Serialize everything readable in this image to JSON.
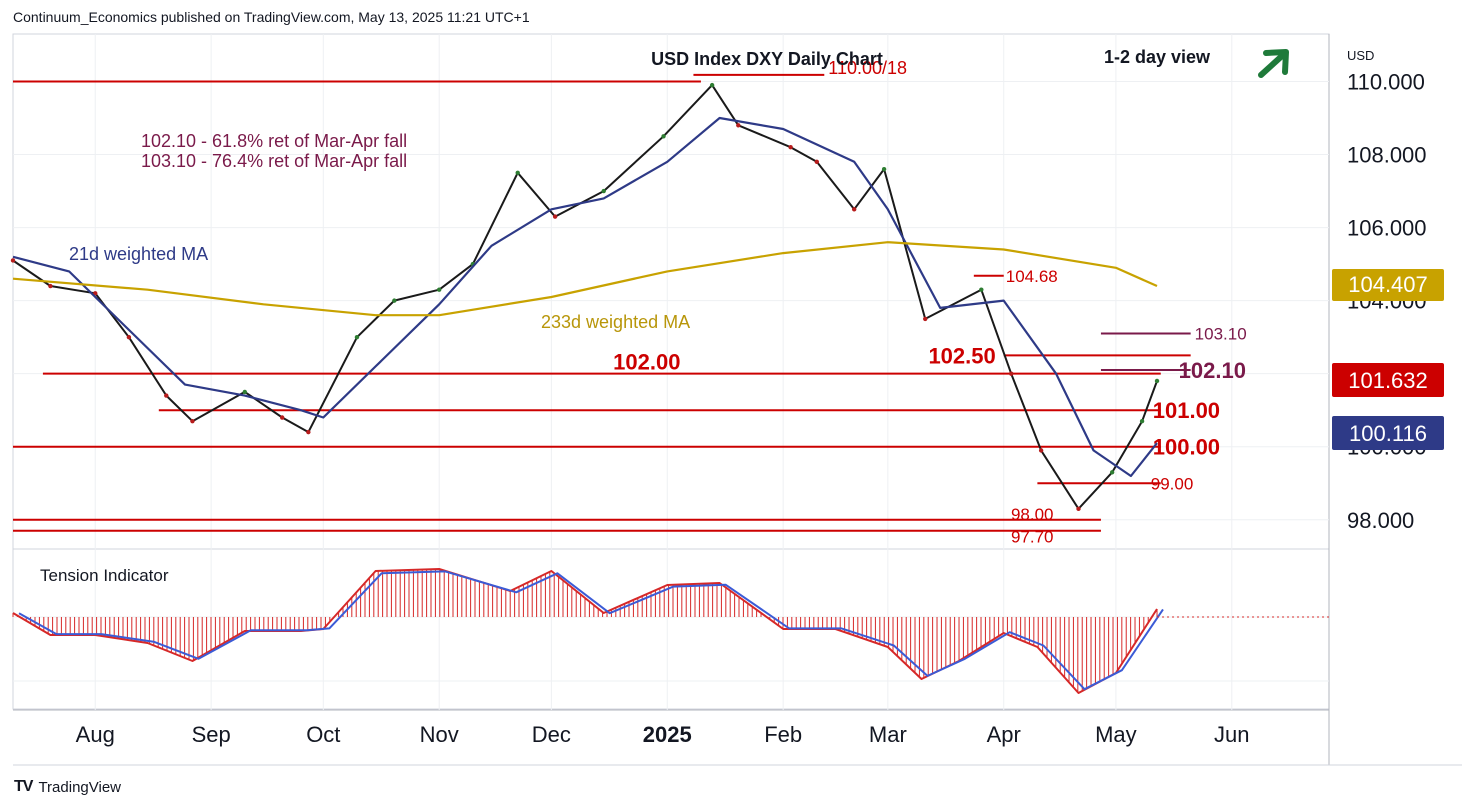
{
  "header": {
    "publisher_text": "Continuum_Economics published on TradingView.com, May 13, 2025 11:21 UTC+1"
  },
  "footer": {
    "brand": "TradingView",
    "logo_icon": "tradingview-logo-icon"
  },
  "chart_data": {
    "type": "candlestick",
    "title": "USD Index DXY Daily Chart",
    "view_label": "1-2 day view",
    "view_direction_icon": "arrow-up-right-icon",
    "currency": "USD",
    "ylim": [
      97.2,
      111.3
    ],
    "yticks": [
      "110.000",
      "108.000",
      "106.000",
      "104.000",
      "102.000",
      "100.000",
      "98.000"
    ],
    "xticks": [
      "Aug",
      "Sep",
      "Oct",
      "Nov",
      "Dec",
      "2025",
      "Feb",
      "Mar",
      "Apr",
      "May",
      "Jun"
    ],
    "x_range": [
      "2024-07-10",
      "2025-06-27"
    ],
    "xtick_dates": [
      "2024-08-01",
      "2024-09-01",
      "2024-10-01",
      "2024-11-01",
      "2024-12-01",
      "2025-01-01",
      "2025-02-01",
      "2025-03-01",
      "2025-04-01",
      "2025-05-01",
      "2025-06-01"
    ],
    "last_price": {
      "value": 101.632,
      "label": "101.632",
      "color": "#cc0000"
    },
    "ma21_value": {
      "value": 100.116,
      "label": "100.116",
      "color": "#2e3a87"
    },
    "ma233_value": {
      "value": 104.407,
      "label": "104.407",
      "color": "#c8a200"
    },
    "annotations": {
      "fib_note_1": "102.10 - 61.8% ret of Mar-Apr fall",
      "fib_note_2": "103.10 - 76.4% ret of Mar-Apr fall",
      "ma21_label": "21d weighted MA",
      "ma233_label": "233d weighted MA"
    },
    "levels": [
      {
        "value": 110.18,
        "label": "110.00/18",
        "color": "#cc0000",
        "start": "2025-01-08",
        "end": "2025-02-12"
      },
      {
        "value": 110.0,
        "label": "",
        "color": "#cc0000",
        "start": "2024-07-10",
        "end": "2025-01-10"
      },
      {
        "value": 104.68,
        "label": "104.68",
        "color": "#cc0000",
        "start": "2025-03-24",
        "end": "2025-04-01"
      },
      {
        "value": 103.1,
        "label": "103.10",
        "color": "#7a1a4a",
        "start": "2025-04-27",
        "end": "2025-05-21"
      },
      {
        "value": 102.5,
        "label": "102.50",
        "color": "#cc0000",
        "start": "2025-04-01",
        "end": "2025-05-21"
      },
      {
        "value": 102.1,
        "label": "102.10",
        "color": "#7a1a4a",
        "start": "2025-04-27",
        "end": "2025-05-21"
      },
      {
        "value": 102.0,
        "label": "102.00",
        "color": "#cc0000",
        "start": "2024-07-18",
        "end": "2025-05-13"
      },
      {
        "value": 101.0,
        "label": "101.00",
        "color": "#cc0000",
        "start": "2024-08-18",
        "end": "2025-05-13"
      },
      {
        "value": 100.0,
        "label": "100.00",
        "color": "#cc0000",
        "start": "2024-07-10",
        "end": "2025-05-13"
      },
      {
        "value": 99.0,
        "label": "99.00",
        "color": "#cc0000",
        "start": "2025-04-10",
        "end": "2025-05-13"
      },
      {
        "value": 98.0,
        "label": "98.00",
        "color": "#cc0000",
        "start": "2024-07-10",
        "end": "2025-04-27"
      },
      {
        "value": 97.7,
        "label": "97.70",
        "color": "#cc0000",
        "start": "2024-07-10",
        "end": "2025-04-27"
      }
    ],
    "series": [
      {
        "name": "DXY",
        "kind": "close",
        "x": [
          "2024-07-10",
          "2024-07-20",
          "2024-08-01",
          "2024-08-10",
          "2024-08-20",
          "2024-08-27",
          "2024-09-10",
          "2024-09-20",
          "2024-09-27",
          "2024-10-10",
          "2024-10-20",
          "2024-11-01",
          "2024-11-10",
          "2024-11-22",
          "2024-12-02",
          "2024-12-15",
          "2024-12-31",
          "2025-01-13",
          "2025-01-20",
          "2025-02-03",
          "2025-02-10",
          "2025-02-20",
          "2025-02-28",
          "2025-03-11",
          "2025-03-26",
          "2025-04-03",
          "2025-04-11",
          "2025-04-21",
          "2025-04-30",
          "2025-05-08",
          "2025-05-12"
        ],
        "y": [
          105.1,
          104.4,
          104.2,
          103.0,
          101.4,
          100.7,
          101.5,
          100.8,
          100.4,
          103.0,
          104.0,
          104.3,
          105.0,
          107.5,
          106.3,
          107.0,
          108.5,
          109.9,
          108.8,
          108.2,
          107.8,
          106.5,
          107.6,
          103.5,
          104.3,
          102.0,
          99.9,
          98.3,
          99.3,
          100.7,
          101.8
        ]
      },
      {
        "name": "21d weighted MA",
        "x": [
          "2024-07-10",
          "2024-07-25",
          "2024-08-10",
          "2024-08-25",
          "2024-09-10",
          "2024-09-25",
          "2024-10-01",
          "2024-10-15",
          "2024-11-01",
          "2024-11-15",
          "2024-12-01",
          "2024-12-15",
          "2025-01-01",
          "2025-01-15",
          "2025-02-01",
          "2025-02-20",
          "2025-03-01",
          "2025-03-15",
          "2025-04-01",
          "2025-04-15",
          "2025-04-25",
          "2025-05-05",
          "2025-05-12"
        ],
        "y": [
          105.2,
          104.8,
          103.2,
          101.7,
          101.4,
          101.0,
          100.8,
          102.2,
          103.9,
          105.5,
          106.5,
          106.8,
          107.8,
          109.0,
          108.7,
          107.8,
          106.5,
          103.8,
          104.0,
          102.0,
          99.9,
          99.2,
          100.1
        ]
      },
      {
        "name": "233d weighted MA",
        "x": [
          "2024-07-10",
          "2024-08-15",
          "2024-09-15",
          "2024-10-15",
          "2024-11-01",
          "2024-12-01",
          "2025-01-01",
          "2025-02-01",
          "2025-03-01",
          "2025-04-01",
          "2025-05-01",
          "2025-05-12"
        ],
        "y": [
          104.6,
          104.3,
          103.9,
          103.6,
          103.6,
          104.1,
          104.8,
          105.3,
          105.6,
          105.4,
          104.9,
          104.4
        ]
      }
    ],
    "tension_indicator": {
      "label": "Tension Indicator",
      "x": [
        "2024-07-10",
        "2024-07-20",
        "2024-08-01",
        "2024-08-15",
        "2024-08-27",
        "2024-09-10",
        "2024-09-25",
        "2024-10-01",
        "2024-10-15",
        "2024-11-01",
        "2024-11-20",
        "2024-12-01",
        "2024-12-15",
        "2025-01-01",
        "2025-01-15",
        "2025-02-01",
        "2025-02-15",
        "2025-03-01",
        "2025-03-10",
        "2025-03-20",
        "2025-04-01",
        "2025-04-10",
        "2025-04-21",
        "2025-05-01",
        "2025-05-12"
      ],
      "y": [
        0.1,
        -0.45,
        -0.45,
        -0.65,
        -1.1,
        -0.35,
        -0.35,
        -0.3,
        1.15,
        1.2,
        0.65,
        1.15,
        0.1,
        0.8,
        0.85,
        -0.3,
        -0.3,
        -0.75,
        -1.55,
        -1.1,
        -0.4,
        -0.75,
        -1.9,
        -1.4,
        0.2
      ]
    }
  }
}
